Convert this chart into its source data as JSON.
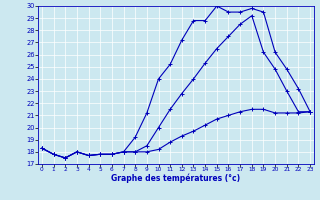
{
  "title": "Graphe des températures (°c)",
  "bg_color": "#cce8f0",
  "line_color": "#0000bb",
  "xlim_min": -0.3,
  "xlim_max": 23.3,
  "ylim_min": 17,
  "ylim_max": 30,
  "ytick_vals": [
    17,
    18,
    19,
    20,
    21,
    22,
    23,
    24,
    25,
    26,
    27,
    28,
    29,
    30
  ],
  "xtick_vals": [
    0,
    1,
    2,
    3,
    4,
    5,
    6,
    7,
    8,
    9,
    10,
    11,
    12,
    13,
    14,
    15,
    16,
    17,
    18,
    19,
    20,
    21,
    22,
    23
  ],
  "series": [
    [
      18.3,
      17.8,
      17.5,
      18.0,
      17.7,
      17.8,
      17.8,
      18.0,
      19.2,
      21.2,
      24.0,
      25.2,
      27.2,
      28.8,
      28.8,
      30.0,
      29.5,
      29.5,
      29.8,
      29.5,
      26.2,
      24.8,
      23.2,
      21.3
    ],
    [
      18.3,
      17.8,
      17.5,
      18.0,
      17.7,
      17.8,
      17.8,
      18.0,
      18.0,
      18.5,
      20.0,
      21.5,
      22.8,
      24.0,
      25.3,
      26.5,
      27.5,
      28.5,
      29.2,
      26.2,
      24.8,
      23.0,
      21.3,
      21.3
    ],
    [
      18.3,
      17.8,
      17.5,
      18.0,
      17.7,
      17.8,
      17.8,
      18.0,
      18.0,
      18.0,
      18.2,
      18.8,
      19.3,
      19.7,
      20.2,
      20.7,
      21.0,
      21.3,
      21.5,
      21.5,
      21.2,
      21.2,
      21.2,
      21.3
    ]
  ]
}
